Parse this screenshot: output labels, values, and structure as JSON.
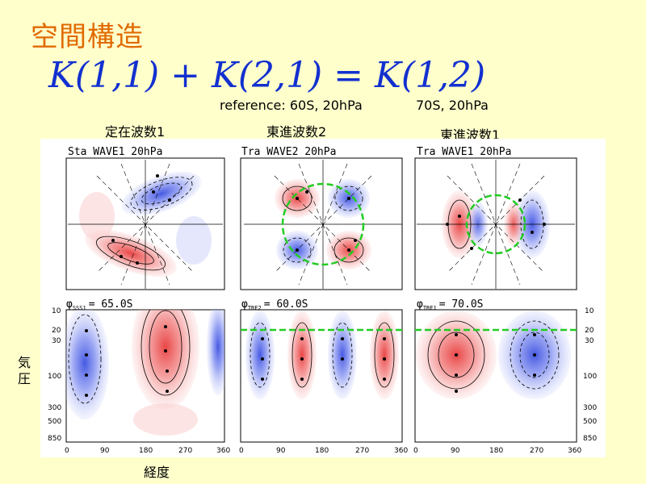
{
  "title": "空間構造",
  "equation": "K(1,1) + K(2,1) = K(1,2)",
  "reference": {
    "first": "reference: 60S, 20hPa",
    "second": "70S, 20hPa"
  },
  "panel_labels": [
    "定在波数1",
    "東進波数2",
    "東進波数1"
  ],
  "y_axis_label": "気圧",
  "x_axis_label": "経度",
  "panels": [
    {
      "header": "Sta WAVE1   20hPa",
      "lat_label": "= 65.0S",
      "phi_sub": "SSS1"
    },
    {
      "header": "Tra WAVE2   20hPa",
      "lat_label": "= 60.0S",
      "phi_sub": "TRE2"
    },
    {
      "header": "Tra WAVE1   20hPa",
      "lat_label": "= 70.0S",
      "phi_sub": "TRE1"
    }
  ],
  "pressure_ticks": [
    "10",
    "20",
    "30",
    "100",
    "300",
    "500",
    "850"
  ],
  "longitude_ticks": [
    "0",
    "90",
    "180",
    "270",
    "360"
  ],
  "colors": {
    "positive": "#e83c3c",
    "negative": "#3c50e0",
    "reference_line": "#22cc22",
    "title": "#e06a00",
    "equation": "#1230d0"
  }
}
